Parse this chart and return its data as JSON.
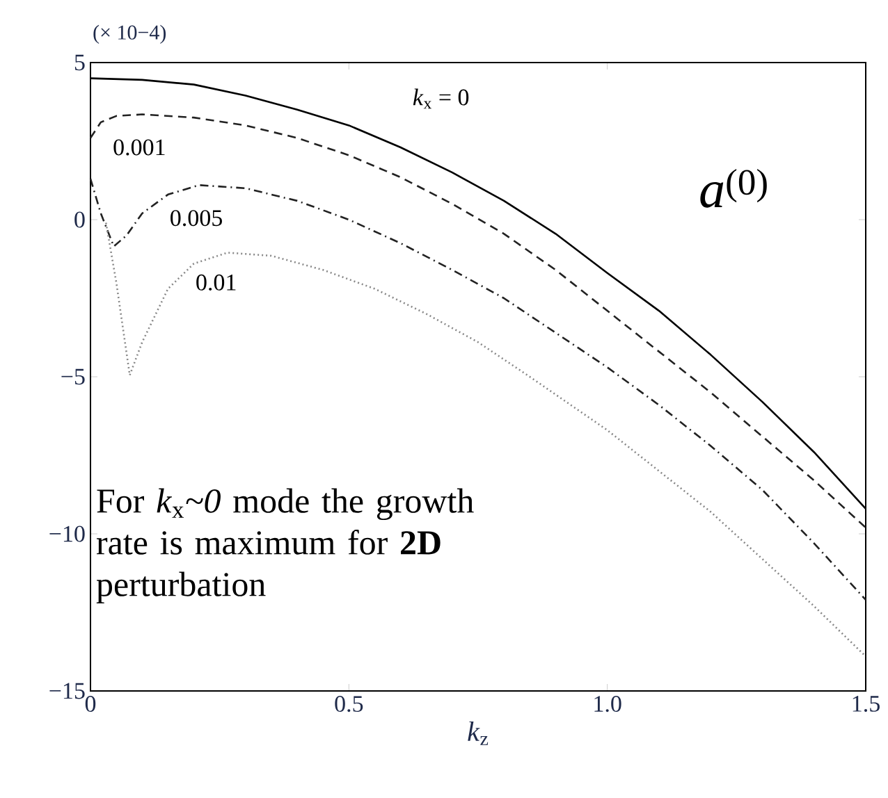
{
  "chart_data": {
    "type": "line",
    "xlabel": "*k*$_{z}$",
    "annotations": [
      "(× 10−4)",
      "*a*$^{(0)}$",
      "For *k*$_{x}$*~0* mode the growth rate is maximum for **2D** perturbation"
    ],
    "xlim": [
      0,
      1.5
    ],
    "ylim": [
      -15,
      5
    ],
    "xticks": [
      0,
      0.5,
      {
        "value": 1,
        "label": "1.0"
      },
      1.5
    ],
    "yticks": [
      {
        "value": -15,
        "label": "−15"
      },
      {
        "value": -10,
        "label": "−10"
      },
      {
        "value": -5,
        "label": "−5"
      },
      0,
      5
    ],
    "legend": false,
    "grid": false,
    "series": [
      {
        "name": "*k*$_{x}$ = 0",
        "color": "#000000",
        "line_style": "solid",
        "x": [
          0,
          0.1,
          0.2,
          0.3,
          0.4,
          0.5,
          0.6,
          0.7,
          0.8,
          0.9,
          1.0,
          1.1,
          1.2,
          1.3,
          1.4,
          1.5
        ],
        "values": [
          4.5,
          4.45,
          4.3,
          3.95,
          3.5,
          3.0,
          2.3,
          1.5,
          0.6,
          -0.45,
          -1.7,
          -2.9,
          -4.3,
          -5.8,
          -7.4,
          -9.2
        ]
      },
      {
        "name": "0.001",
        "color": "#222222",
        "line_style": "dashed",
        "x": [
          0,
          0.02,
          0.05,
          0.1,
          0.2,
          0.3,
          0.4,
          0.5,
          0.6,
          0.7,
          0.8,
          0.9,
          1.0,
          1.1,
          1.2,
          1.3,
          1.4,
          1.5
        ],
        "values": [
          2.6,
          3.1,
          3.3,
          3.35,
          3.25,
          3.0,
          2.6,
          2.05,
          1.35,
          0.5,
          -0.45,
          -1.6,
          -2.9,
          -4.2,
          -5.5,
          -6.9,
          -8.3,
          -9.8
        ]
      },
      {
        "name": "0.005",
        "color": "#222222",
        "line_style": "dashdot",
        "x": [
          0,
          0.02,
          0.045,
          0.07,
          0.1,
          0.15,
          0.21,
          0.3,
          0.4,
          0.5,
          0.6,
          0.7,
          0.8,
          0.9,
          1.0,
          1.1,
          1.2,
          1.3,
          1.4,
          1.5
        ],
        "values": [
          1.3,
          0.2,
          -0.85,
          -0.5,
          0.2,
          0.8,
          1.1,
          1.0,
          0.6,
          0.0,
          -0.75,
          -1.6,
          -2.5,
          -3.6,
          -4.7,
          -5.9,
          -7.2,
          -8.6,
          -10.3,
          -12.1
        ]
      },
      {
        "name": "0.01",
        "color": "#888888",
        "line_style": "dotted",
        "x": [
          0.03,
          0.05,
          0.076,
          0.1,
          0.15,
          0.2,
          0.265,
          0.35,
          0.45,
          0.55,
          0.65,
          0.75,
          0.85,
          1.0,
          1.1,
          1.2,
          1.3,
          1.4,
          1.5
        ],
        "values": [
          -0.1,
          -2.0,
          -4.95,
          -3.9,
          -2.2,
          -1.4,
          -1.05,
          -1.15,
          -1.6,
          -2.2,
          -3.0,
          -3.9,
          -5.0,
          -6.7,
          -8.0,
          -9.3,
          -10.8,
          -12.3,
          -13.9
        ]
      }
    ]
  }
}
